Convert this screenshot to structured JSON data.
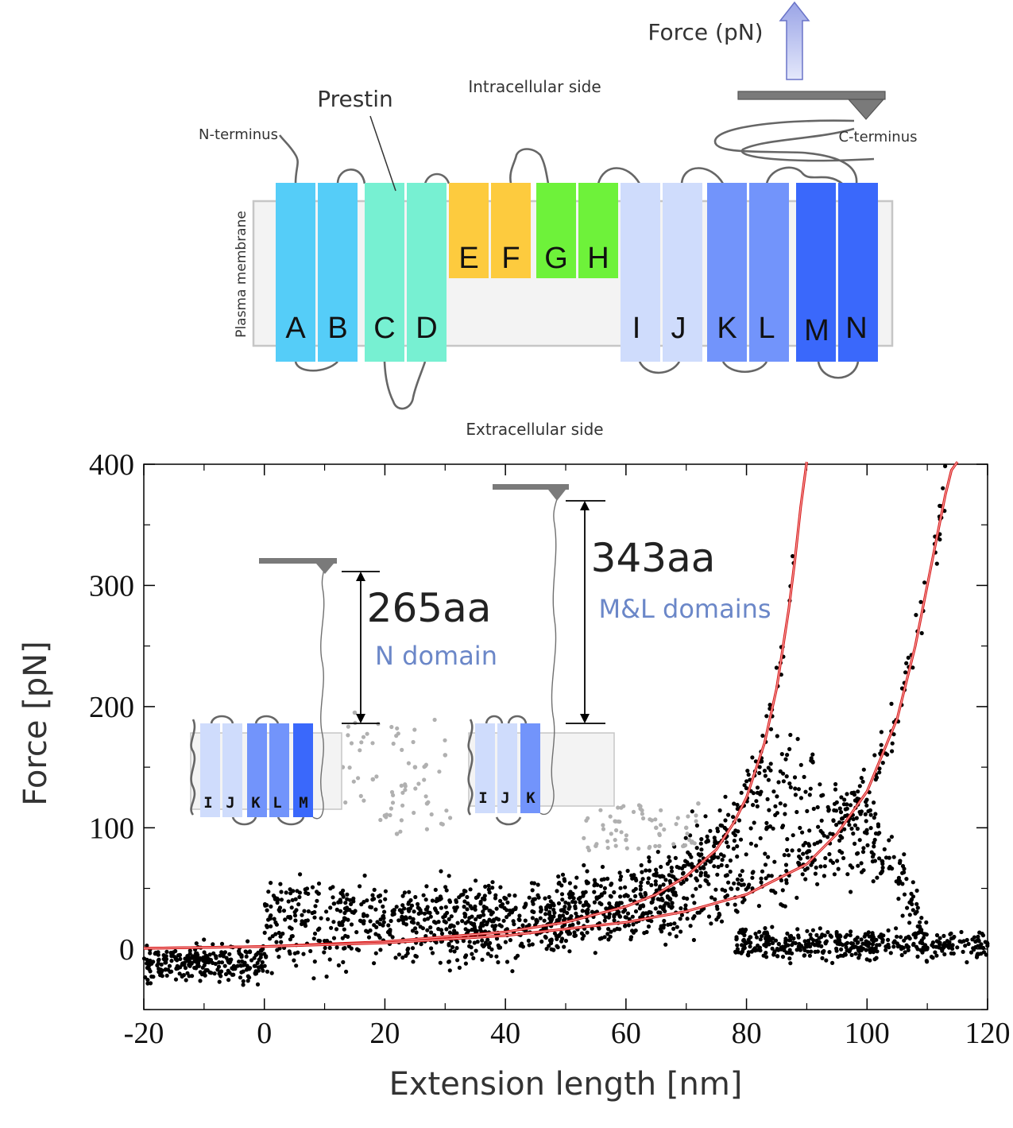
{
  "diagram": {
    "force_label": "Force (pN)",
    "intracellular_label": "Intracellular side",
    "extracellular_label": "Extracellular side",
    "protein_label": "Prestin",
    "n_terminus_label": "N-terminus",
    "c_terminus_label": "C-terminus",
    "membrane_label": "Plasma membrane",
    "helices": [
      {
        "letter": "A",
        "color": "#55cdf8"
      },
      {
        "letter": "B",
        "color": "#55cdf8"
      },
      {
        "letter": "C",
        "color": "#77f0d2"
      },
      {
        "letter": "D",
        "color": "#77f0d2"
      },
      {
        "letter": "E",
        "color": "#fdcb3e"
      },
      {
        "letter": "F",
        "color": "#fdcb3e"
      },
      {
        "letter": "G",
        "color": "#6ef23a"
      },
      {
        "letter": "H",
        "color": "#6ef23a"
      },
      {
        "letter": "I",
        "color": "#cfdcfc"
      },
      {
        "letter": "J",
        "color": "#cfdcfc"
      },
      {
        "letter": "K",
        "color": "#7294fb"
      },
      {
        "letter": "L",
        "color": "#7294fb"
      },
      {
        "letter": "M",
        "color": "#3a68fb"
      },
      {
        "letter": "N",
        "color": "#3a68fb"
      }
    ]
  },
  "insets": [
    {
      "length_label": "265aa",
      "domain_label": "N domain",
      "helices": [
        "I",
        "J",
        "K",
        "L",
        "M"
      ]
    },
    {
      "length_label": "343aa",
      "domain_label": "M&L domains",
      "helices": [
        "I",
        "J",
        "K"
      ]
    }
  ],
  "chart_data": {
    "type": "scatter",
    "xlabel": "Extension length [nm]",
    "ylabel": "Force [pN]",
    "xlim": [
      -20,
      120
    ],
    "ylim": [
      -50,
      400
    ],
    "xticks": [
      -20,
      0,
      20,
      40,
      60,
      80,
      100,
      120
    ],
    "yticks": [
      0,
      100,
      200,
      300,
      400
    ],
    "grid": false,
    "colors": {
      "data": "#000000",
      "excluded_data": "#b0b0b0",
      "fit": "#d81818"
    },
    "series": [
      {
        "kind": "scatter",
        "description_points": "black force-extension trace points",
        "x": [
          -20,
          -15,
          -10,
          -5,
          -1,
          0,
          2,
          5,
          10,
          15,
          20,
          25,
          30,
          35,
          40,
          45,
          50,
          55,
          60,
          65,
          70,
          75,
          80,
          85,
          90,
          95,
          100,
          105,
          110,
          115,
          120
        ],
        "y": [
          -10,
          -12,
          -15,
          -8,
          -5,
          30,
          35,
          40,
          45,
          38,
          30,
          35,
          38,
          40,
          38,
          42,
          45,
          50,
          55,
          60,
          80,
          100,
          120,
          170,
          140,
          110,
          120,
          80,
          5,
          5,
          5
        ]
      },
      {
        "kind": "scatter",
        "description_points": "grey excluded trace points",
        "x": [
          13,
          15,
          18,
          20,
          22,
          25,
          27,
          30,
          55,
          60,
          65,
          70,
          72
        ],
        "y": [
          150,
          195,
          140,
          110,
          95,
          150,
          120,
          160,
          85,
          90,
          100,
          100,
          120
        ]
      },
      {
        "kind": "line",
        "x": [
          -20,
          0,
          20,
          40,
          50,
          60,
          65,
          70,
          75,
          78,
          80,
          83,
          85,
          87,
          88,
          89,
          90
        ],
        "y": [
          0.5,
          2,
          6,
          14,
          22,
          35,
          45,
          60,
          82,
          105,
          125,
          170,
          215,
          280,
          320,
          365,
          410
        ]
      },
      {
        "kind": "line",
        "x": [
          -20,
          0,
          20,
          40,
          60,
          70,
          80,
          90,
          95,
          100,
          105,
          108,
          110,
          112,
          113,
          114,
          115
        ],
        "y": [
          0.5,
          2,
          5,
          11,
          22,
          31,
          45,
          70,
          95,
          130,
          190,
          250,
          300,
          350,
          375,
          395,
          410
        ]
      }
    ]
  }
}
